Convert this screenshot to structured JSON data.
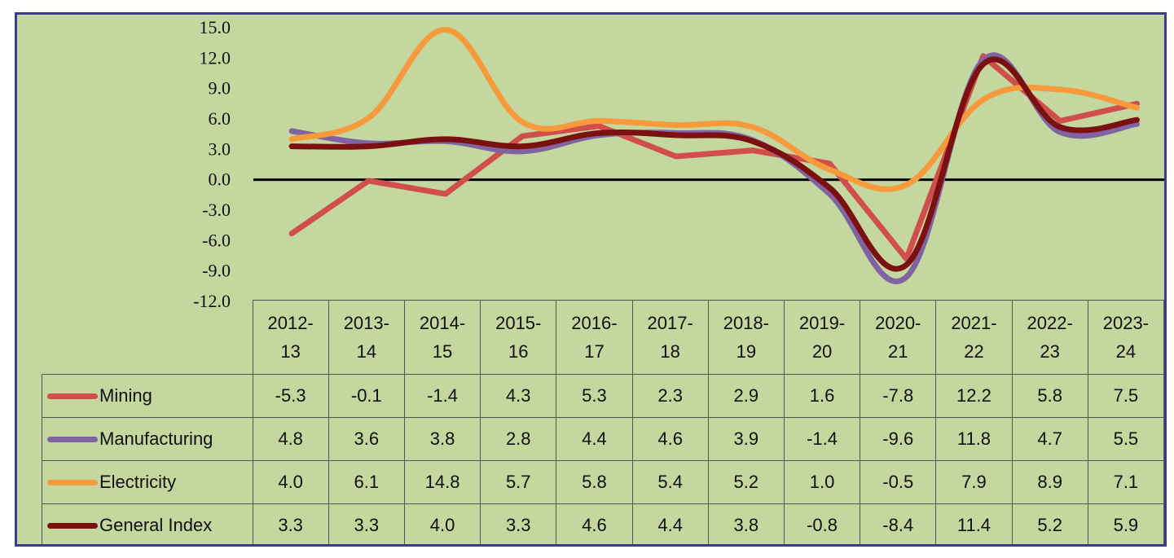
{
  "chart_data": {
    "type": "line",
    "categories": [
      "2012-13",
      "2013-14",
      "2014-15",
      "2015-16",
      "2016-17",
      "2017-18",
      "2018-19",
      "2019-20",
      "2020-21",
      "2021-22",
      "2022-23",
      "2023-24"
    ],
    "category_top": [
      "2012-",
      "2013-",
      "2014-",
      "2015-",
      "2016-",
      "2017-",
      "2018-",
      "2019-",
      "2020-",
      "2021-",
      "2022-",
      "2023-"
    ],
    "category_bottom": [
      "13",
      "14",
      "15",
      "16",
      "17",
      "18",
      "19",
      "20",
      "21",
      "22",
      "23",
      "24"
    ],
    "y_ticks": [
      "15.0",
      "12.0",
      "9.0",
      "6.0",
      "3.0",
      "0.0",
      "-3.0",
      "-6.0",
      "-9.0",
      "-12.0"
    ],
    "ylim": [
      -12,
      15
    ],
    "grid": false,
    "legend": "data-table",
    "series": [
      {
        "name": "Mining",
        "color": "#d04f4c",
        "values": [
          -5.3,
          -0.1,
          -1.4,
          4.3,
          5.3,
          2.3,
          2.9,
          1.6,
          -7.8,
          12.2,
          5.8,
          7.5
        ],
        "labels": [
          "-5.3",
          "-0.1",
          "-1.4",
          "4.3",
          "5.3",
          "2.3",
          "2.9",
          "1.6",
          "-7.8",
          "12.2",
          "5.8",
          "7.5"
        ]
      },
      {
        "name": "Manufacturing",
        "color": "#8064a2",
        "values": [
          4.8,
          3.6,
          3.8,
          2.8,
          4.4,
          4.6,
          3.9,
          -1.4,
          -9.6,
          11.8,
          4.7,
          5.5
        ],
        "labels": [
          "4.8",
          "3.6",
          "3.8",
          "2.8",
          "4.4",
          "4.6",
          "3.9",
          "-1.4",
          "-9.6",
          "11.8",
          "4.7",
          "5.5"
        ]
      },
      {
        "name": "Electricity",
        "color": "#f79a3c",
        "values": [
          4.0,
          6.1,
          14.8,
          5.7,
          5.8,
          5.4,
          5.2,
          1.0,
          -0.5,
          7.9,
          8.9,
          7.1
        ],
        "labels": [
          "4.0",
          "6.1",
          "14.8",
          "5.7",
          "5.8",
          "5.4",
          "5.2",
          "1.0",
          "-0.5",
          "7.9",
          "8.9",
          "7.1"
        ]
      },
      {
        "name": "General Index",
        "color": "#7a1010",
        "values": [
          3.3,
          3.3,
          4.0,
          3.3,
          4.6,
          4.4,
          3.8,
          -0.8,
          -8.4,
          11.4,
          5.2,
          5.9
        ],
        "labels": [
          "3.3",
          "3.3",
          "4.0",
          "3.3",
          "4.6",
          "4.4",
          "3.8",
          "-0.8",
          "-8.4",
          "11.4",
          "5.2",
          "5.9"
        ]
      }
    ]
  }
}
